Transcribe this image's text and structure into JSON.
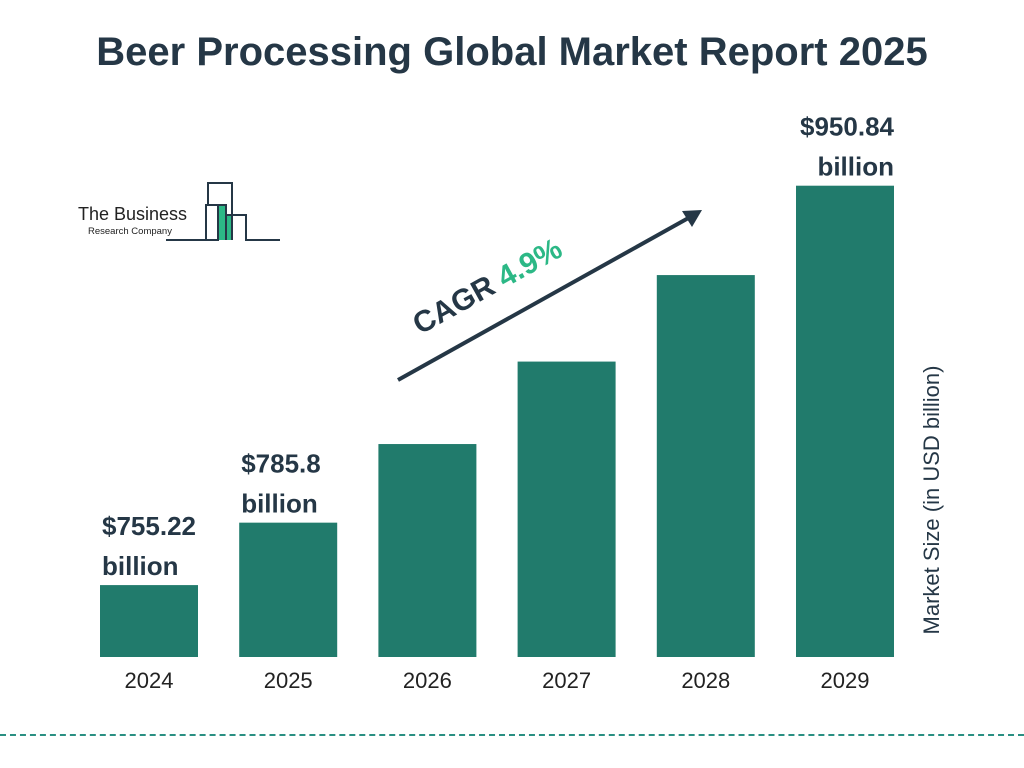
{
  "chart_data": {
    "type": "bar",
    "title": "Beer Processing Global Market Report 2025",
    "ylabel": "Market Size (in USD billion)",
    "xlabel": "",
    "categories": [
      "2024",
      "2025",
      "2026",
      "2027",
      "2028",
      "2029"
    ],
    "values": [
      755.22,
      785.8,
      null,
      null,
      null,
      950.84
    ],
    "data_labels": [
      {
        "index": 0,
        "line1": "$755.22",
        "line2": "billion"
      },
      {
        "index": 1,
        "line1": "$785.8",
        "line2": "billion"
      },
      {
        "index": 5,
        "line1": "$950.84",
        "line2": "billion"
      }
    ],
    "annotation": {
      "prefix": "CAGR ",
      "value": "4.9%"
    },
    "grid": false,
    "colors": {
      "bar": "#217b6c",
      "text": "#253746",
      "accent": "#2cb886"
    }
  },
  "logo": {
    "line1": "The Business",
    "line2": "Research Company"
  }
}
